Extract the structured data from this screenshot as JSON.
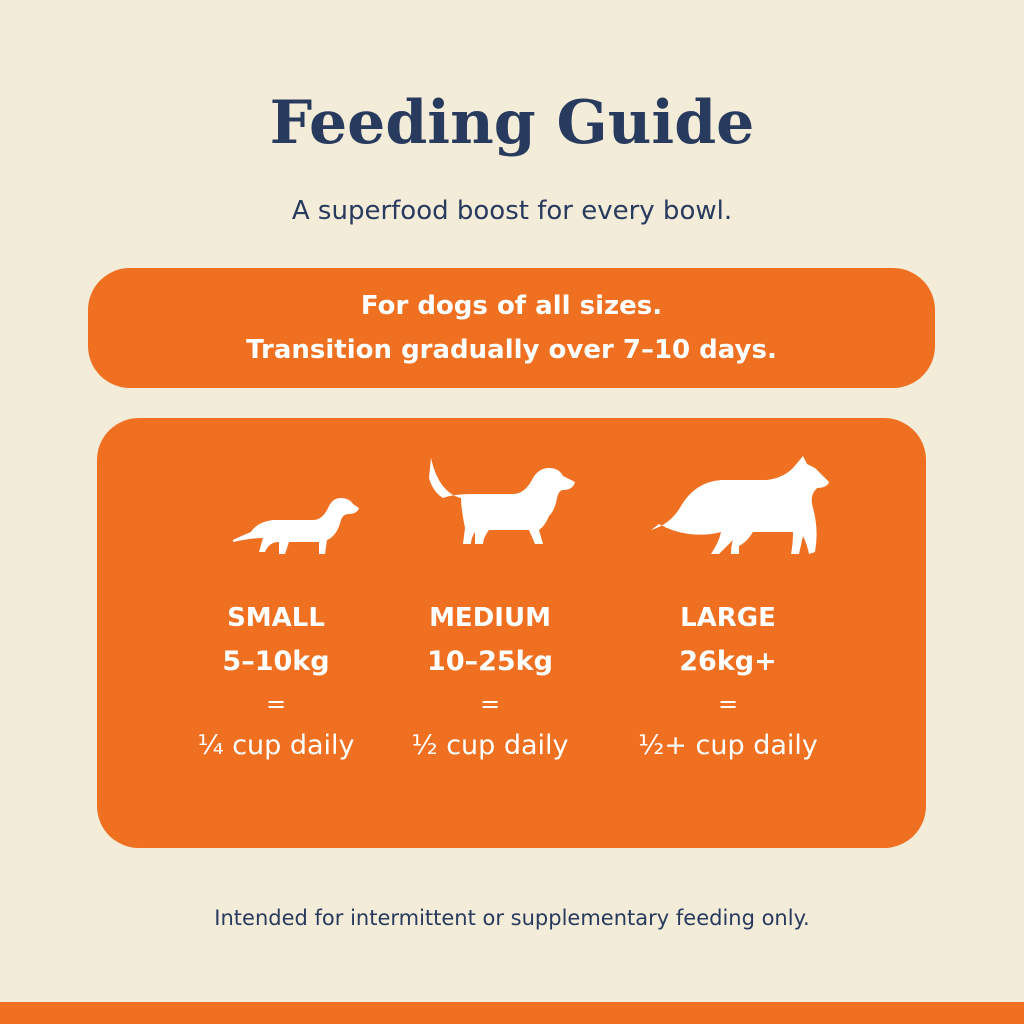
{
  "header": {
    "title": "Feeding Guide",
    "subtitle": "A superfood boost for every bowl."
  },
  "banner": {
    "lines": [
      "For dogs of all sizes.",
      "Transition gradually over 7–10 days."
    ]
  },
  "sizes": [
    {
      "label": "SMALL",
      "weight": "5–10kg",
      "equals": "=",
      "amount": "¼ cup daily"
    },
    {
      "label": "MEDIUM",
      "weight": "10–25kg",
      "equals": "=",
      "amount": "½ cup daily"
    },
    {
      "label": "LARGE",
      "weight": "26kg+",
      "equals": "=",
      "amount": "½+ cup daily"
    }
  ],
  "footer": "Intended for intermittent or supplementary feeding only."
}
